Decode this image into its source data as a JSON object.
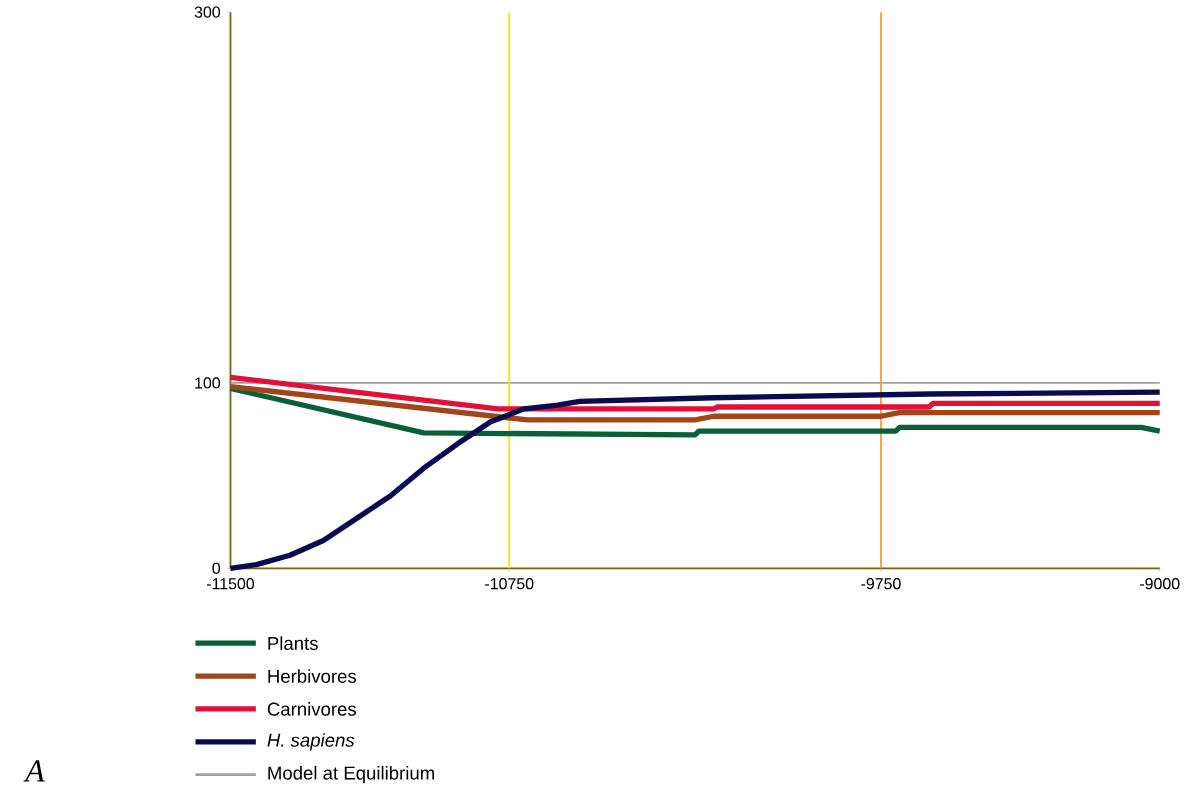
{
  "chart_data": {
    "type": "line",
    "xlim": [
      -11500,
      -9000
    ],
    "ylim": [
      0,
      300
    ],
    "xticks": [
      -11500,
      -10750,
      -9750,
      -9000
    ],
    "yticks": [
      0,
      100,
      300
    ],
    "series": [
      {
        "name": "Plants",
        "color": "#0b5e3a",
        "x": [
          -11500,
          -10980,
          -10250,
          -10240,
          -9710,
          -9700,
          -9050,
          -9000
        ],
        "values": [
          97,
          73,
          72,
          74,
          74,
          76,
          76,
          74
        ]
      },
      {
        "name": "Herbivores",
        "color": "#a0461a",
        "x": [
          -11500,
          -10700,
          -10250,
          -10200,
          -9750,
          -9700,
          -9000
        ],
        "values": [
          98,
          80,
          80,
          82,
          82,
          84,
          84
        ]
      },
      {
        "name": "Carnivores",
        "color": "#e0103a",
        "x": [
          -11500,
          -10780,
          -10200,
          -10190,
          -9620,
          -9610,
          -9000
        ],
        "values": [
          103,
          86,
          86,
          87,
          87,
          89,
          89
        ]
      },
      {
        "name": "*H. sapiens*",
        "color": "#0a0a50",
        "x": [
          -11500,
          -11430,
          -11340,
          -11250,
          -11160,
          -11070,
          -10980,
          -10890,
          -10800,
          -10710,
          -10620,
          -10560,
          -10200,
          -9620,
          -9000
        ],
        "values": [
          0,
          2,
          7,
          15,
          27,
          39,
          54,
          67,
          79,
          86,
          88,
          90,
          92,
          94,
          95
        ]
      }
    ],
    "ref_lines": [
      {
        "axis": "y",
        "value": 100,
        "label": "Model at Equilibrium",
        "color": "#a0a0a0"
      },
      {
        "axis": "x",
        "value": -10750,
        "color": "#f5e800"
      },
      {
        "axis": "x",
        "value": -9750,
        "color": "#f0a030"
      }
    ],
    "legend": "bottom",
    "marker": "none",
    "line_style": "solid",
    "grid": false,
    "annotations": [
      "A"
    ]
  }
}
